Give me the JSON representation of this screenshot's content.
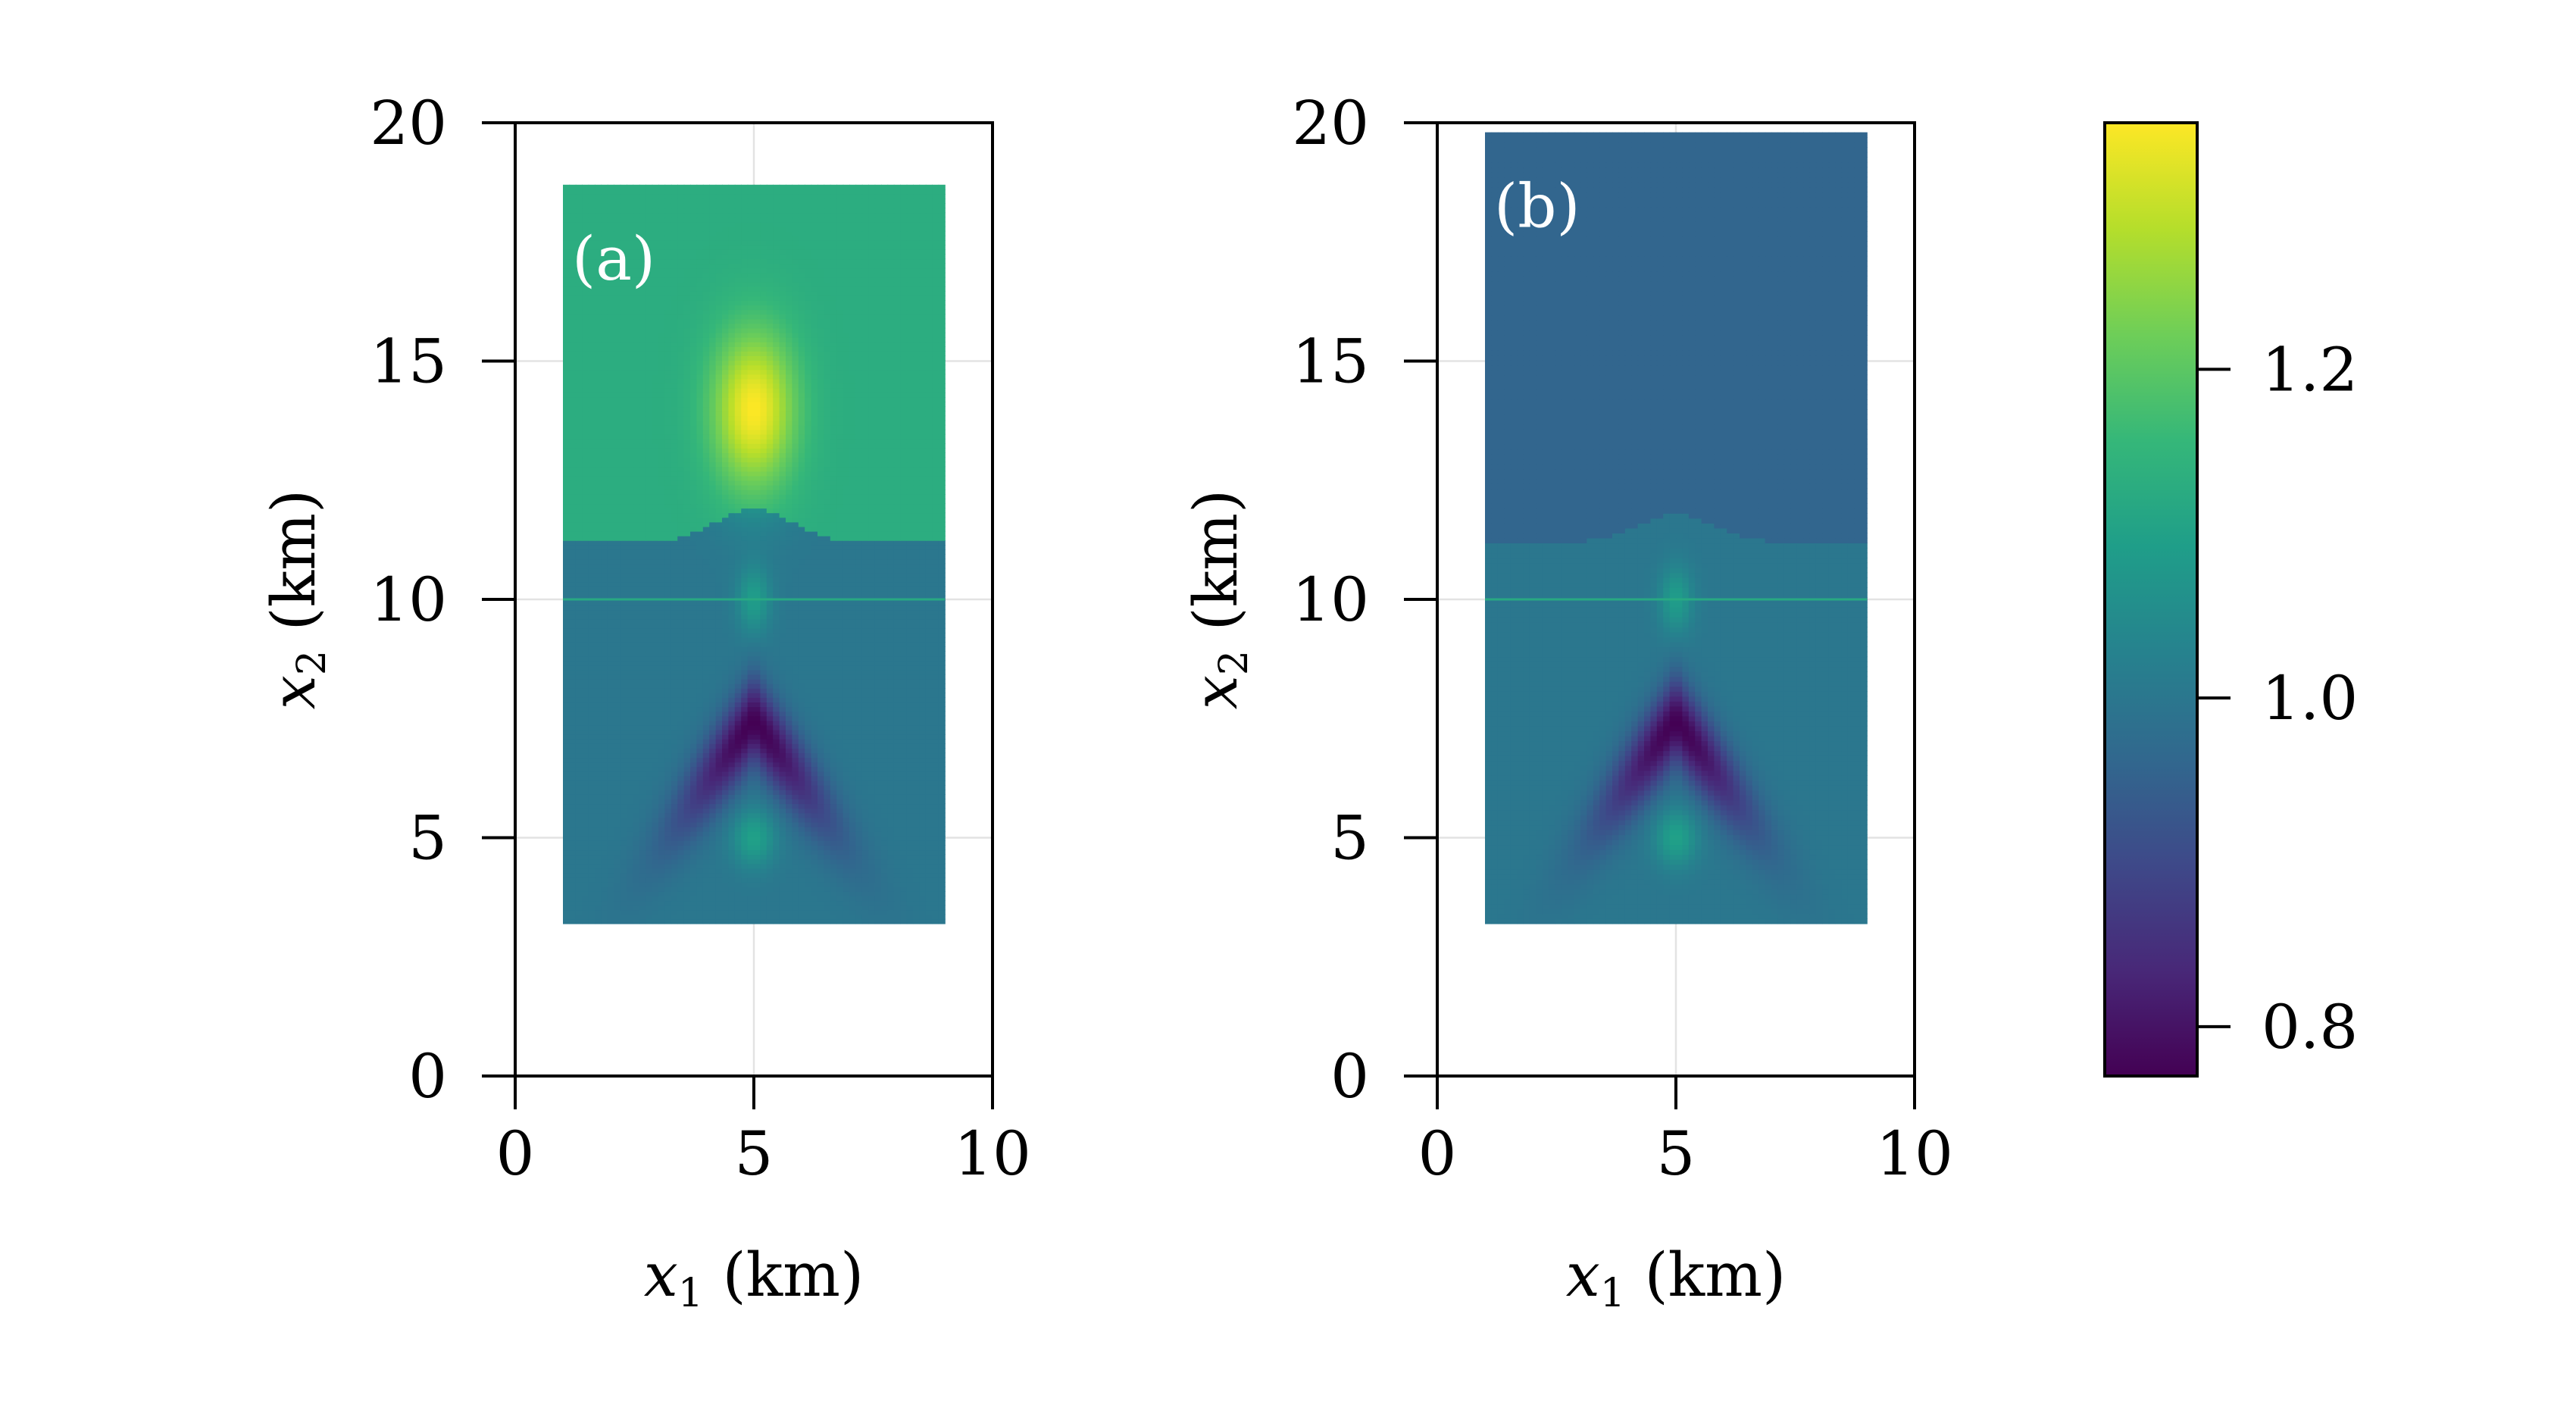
{
  "chart_data": [
    {
      "type": "heatmap",
      "panel_label": "(a)",
      "xlabel": "x1 (km)",
      "xlabel_var": "x",
      "xlabel_sub": "1",
      "xlabel_unit": " (km)",
      "ylabel": "x2 (km)",
      "ylabel_var": "x",
      "ylabel_sub": "2",
      "ylabel_unit": " (km)",
      "xlim": [
        0,
        10
      ],
      "ylim": [
        0,
        20
      ],
      "xticks": [
        0,
        5,
        10
      ],
      "yticks": [
        0,
        5,
        10,
        15,
        20
      ],
      "grid": true,
      "data_extent": {
        "x": [
          1,
          9
        ],
        "y": [
          3.2,
          18.7
        ]
      },
      "interface_base_y": 11.2,
      "interface_bump_peak_y": 11.9,
      "bump_center_x": 5,
      "horizontal_line_y": 10,
      "upper_background_value": 1.13,
      "lower_background_value": 1.0,
      "anomalies": [
        {
          "kind": "high",
          "center": [
            5,
            14.0
          ],
          "peak_value": 1.35
        },
        {
          "kind": "low",
          "center": [
            5,
            7.5
          ],
          "peak_value": 0.77,
          "shape": "chevron"
        },
        {
          "kind": "high",
          "center": [
            5,
            5.0
          ],
          "peak_value": 1.1
        },
        {
          "kind": "high",
          "center": [
            5,
            10.0
          ],
          "peak_value": 1.15
        }
      ]
    },
    {
      "type": "heatmap",
      "panel_label": "(b)",
      "xlabel": "x1 (km)",
      "xlabel_var": "x",
      "xlabel_sub": "1",
      "xlabel_unit": " (km)",
      "ylabel": "x2 (km)",
      "ylabel_var": "x",
      "ylabel_sub": "2",
      "ylabel_unit": " (km)",
      "xlim": [
        0,
        10
      ],
      "ylim": [
        0,
        20
      ],
      "xticks": [
        0,
        5,
        10
      ],
      "yticks": [
        0,
        5,
        10,
        15,
        20
      ],
      "grid": true,
      "data_extent": {
        "x": [
          1,
          9
        ],
        "y": [
          3.2,
          19.8
        ]
      },
      "interface_base_y": 11.2,
      "interface_bump_peak_y": 11.8,
      "bump_center_x": 5,
      "horizontal_line_y": 10,
      "upper_background_value": 0.96,
      "lower_background_value": 1.0,
      "anomalies": [
        {
          "kind": "low",
          "center": [
            5,
            7.5
          ],
          "peak_value": 0.77,
          "shape": "chevron"
        },
        {
          "kind": "high",
          "center": [
            5,
            5.0
          ],
          "peak_value": 1.1
        },
        {
          "kind": "high",
          "center": [
            5,
            10.0
          ],
          "peak_value": 1.15
        }
      ]
    }
  ],
  "colorbar": {
    "colormap": "viridis",
    "range": [
      0.77,
      1.35
    ],
    "ticks": [
      0.8,
      1.0,
      1.2
    ],
    "tick_labels": [
      "0.8",
      "1.0",
      "1.2"
    ],
    "stops": [
      "#440154",
      "#482878",
      "#3e4989",
      "#31688e",
      "#26828e",
      "#1f9e89",
      "#35b779",
      "#6ece58",
      "#b5de2b",
      "#fde725"
    ]
  }
}
